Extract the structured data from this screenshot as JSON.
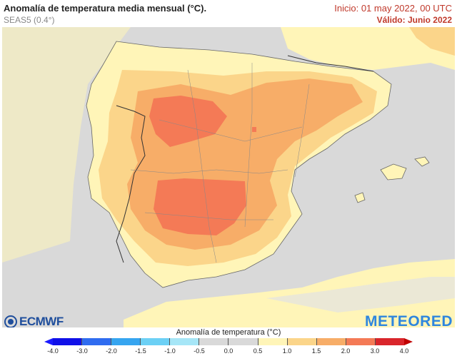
{
  "header": {
    "title": "Anomalía de temperatura media mensual (°C).",
    "subtitle": "SEAS5 (0.4°)",
    "init": "Inicio: 01 may 2022, 00 UTC",
    "valid": "Válido: Junio 2022"
  },
  "logos": {
    "left": "ECMWF",
    "right": "METEORED"
  },
  "legend": {
    "title": "Anomalía de temperatura (°C)",
    "ticks": [
      "-4.0",
      "-3.0",
      "-2.0",
      "-1.5",
      "-1.0",
      "-0.5",
      "0.0",
      "0.5",
      "1.0",
      "1.5",
      "2.0",
      "3.0",
      "4.0"
    ],
    "colors": [
      "#1010e8",
      "#2f6cf0",
      "#36a5f0",
      "#6cd0f5",
      "#a6e6f7",
      "#d9d9d9",
      "#d9d9d9",
      "#fff5b8",
      "#fbd58a",
      "#f7ad68",
      "#f47a56",
      "#d9252b"
    ]
  },
  "colors": {
    "sea": "#d9d9d9",
    "land_base": "#fff5b8",
    "anom_1": "#fbd58a",
    "anom_15": "#f7ad68",
    "anom_2": "#f47a56"
  }
}
